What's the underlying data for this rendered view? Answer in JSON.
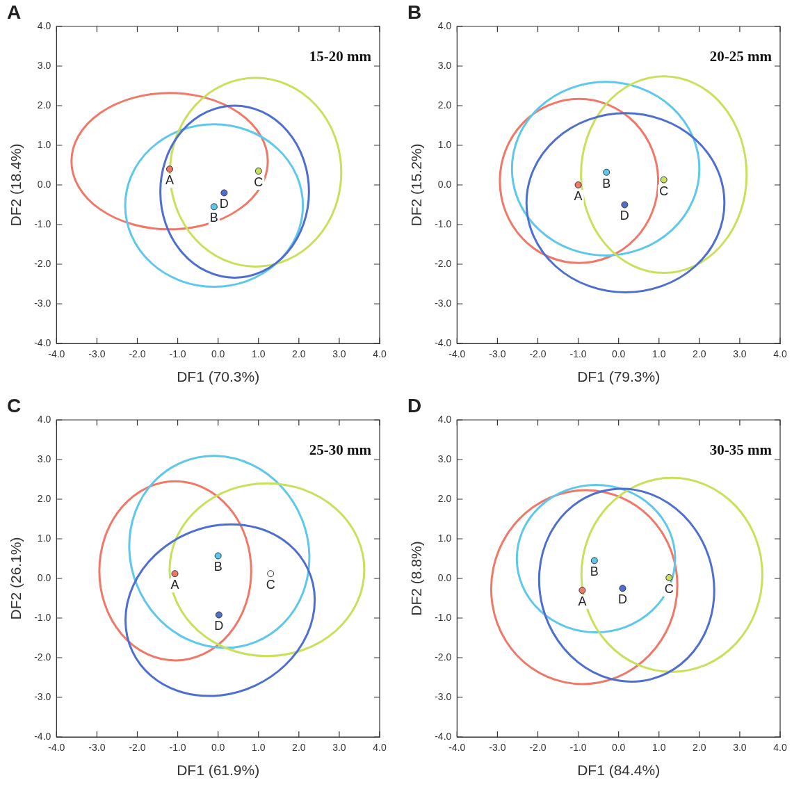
{
  "chart_data": [
    {
      "type": "scatter",
      "title": "A",
      "subtitle": "15-20 mm",
      "xlabel": "DF1 (70.3%)",
      "ylabel": "DF2 (18.4%)",
      "xlim": [
        -4,
        4
      ],
      "ylim": [
        -4,
        4
      ],
      "xticks": [
        {
          "value": -4,
          "label": "-4.0"
        },
        {
          "value": -3,
          "label": "-3.0"
        },
        {
          "value": -2,
          "label": "-2.0"
        },
        {
          "value": -1,
          "label": "-1.0"
        },
        {
          "value": 0,
          "label": "0.0"
        },
        {
          "value": 1,
          "label": "1.0"
        },
        {
          "value": 2,
          "label": "2.0"
        },
        {
          "value": 3,
          "label": "3.0"
        },
        {
          "value": 4,
          "label": "4.0"
        }
      ],
      "yticks": [
        {
          "value": -4,
          "label": "-4.0"
        },
        {
          "value": -3,
          "label": "-3.0"
        },
        {
          "value": -2,
          "label": "-2.0"
        },
        {
          "value": -1,
          "label": "-1.0"
        },
        {
          "value": 0,
          "label": "0.0"
        },
        {
          "value": 1,
          "label": "1.0"
        },
        {
          "value": 2,
          "label": "2.0"
        },
        {
          "value": 3,
          "label": "3.0"
        },
        {
          "value": 4,
          "label": "4.0"
        }
      ],
      "marker": "circle",
      "grid": false,
      "legend": false,
      "series": [
        {
          "name": "A",
          "color": "#f07868",
          "x": [
            -1.2
          ],
          "values": [
            0.4
          ]
        },
        {
          "name": "B",
          "color": "#5ec8ec",
          "x": [
            -0.1
          ],
          "values": [
            -0.55
          ]
        },
        {
          "name": "C",
          "color": "#c8e05a",
          "x": [
            1.0
          ],
          "values": [
            0.35
          ]
        },
        {
          "name": "D",
          "color": "#4f6fd0",
          "x": [
            0.15
          ],
          "values": [
            -0.2
          ]
        }
      ]
    },
    {
      "type": "scatter",
      "title": "B",
      "subtitle": "20-25 mm",
      "xlabel": "DF1 (79.3%)",
      "ylabel": "DF2 (15.2%)",
      "xlim": [
        -4,
        4
      ],
      "ylim": [
        -4,
        4
      ],
      "xticks": [
        {
          "value": -4,
          "label": "-4.0"
        },
        {
          "value": -3,
          "label": "-3.0"
        },
        {
          "value": -2,
          "label": "-2.0"
        },
        {
          "value": -1,
          "label": "-1.0"
        },
        {
          "value": 0,
          "label": "0.0"
        },
        {
          "value": 1,
          "label": "1.0"
        },
        {
          "value": 2,
          "label": "2.0"
        },
        {
          "value": 3,
          "label": "3.0"
        },
        {
          "value": 4,
          "label": "4.0"
        }
      ],
      "yticks": [
        {
          "value": -4,
          "label": "-4.0"
        },
        {
          "value": -3,
          "label": "-3.0"
        },
        {
          "value": -2,
          "label": "-2.0"
        },
        {
          "value": -1,
          "label": "-1.0"
        },
        {
          "value": 0,
          "label": "0.0"
        },
        {
          "value": 1,
          "label": "1.0"
        },
        {
          "value": 2,
          "label": "2.0"
        },
        {
          "value": 3,
          "label": "3.0"
        },
        {
          "value": 4,
          "label": "4.0"
        }
      ],
      "marker": "circle",
      "grid": false,
      "legend": false,
      "series": [
        {
          "name": "A",
          "color": "#f07868",
          "x": [
            -1.0
          ],
          "values": [
            0.0
          ]
        },
        {
          "name": "B",
          "color": "#5ec8ec",
          "x": [
            -0.3
          ],
          "values": [
            0.32
          ]
        },
        {
          "name": "C",
          "color": "#c8e05a",
          "x": [
            1.12
          ],
          "values": [
            0.13
          ]
        },
        {
          "name": "D",
          "color": "#4f6fd0",
          "x": [
            0.15
          ],
          "values": [
            -0.5
          ]
        }
      ]
    },
    {
      "type": "scatter",
      "title": "C",
      "subtitle": "25-30 mm",
      "xlabel": "DF1 (61.9%)",
      "ylabel": "DF2 (26.1%)",
      "xlim": [
        -4,
        4
      ],
      "ylim": [
        -4,
        4
      ],
      "xticks": [
        {
          "value": -4,
          "label": "-4.0"
        },
        {
          "value": -3,
          "label": "-3.0"
        },
        {
          "value": -2,
          "label": "-2.0"
        },
        {
          "value": -1,
          "label": "-1.0"
        },
        {
          "value": 0,
          "label": "0.0"
        },
        {
          "value": 1,
          "label": "1.0"
        },
        {
          "value": 2,
          "label": "2.0"
        },
        {
          "value": 3,
          "label": "3.0"
        },
        {
          "value": 4,
          "label": "4.0"
        }
      ],
      "yticks": [
        {
          "value": -4,
          "label": "-4.0"
        },
        {
          "value": -3,
          "label": "-3.0"
        },
        {
          "value": -2,
          "label": "-2.0"
        },
        {
          "value": -1,
          "label": "-1.0"
        },
        {
          "value": 0,
          "label": "0.0"
        },
        {
          "value": 1,
          "label": "1.0"
        },
        {
          "value": 2,
          "label": "2.0"
        },
        {
          "value": 3,
          "label": "3.0"
        },
        {
          "value": 4,
          "label": "4.0"
        }
      ],
      "marker": "circle",
      "grid": false,
      "legend": false,
      "series": [
        {
          "name": "A",
          "color": "#f07868",
          "x": [
            -1.07
          ],
          "values": [
            0.12
          ]
        },
        {
          "name": "B",
          "color": "#5ec8ec",
          "x": [
            0.0
          ],
          "values": [
            0.57
          ]
        },
        {
          "name": "C",
          "color": "#ffffff",
          "x": [
            1.3
          ],
          "values": [
            0.12
          ]
        },
        {
          "name": "D",
          "color": "#4f6fd0",
          "x": [
            0.02
          ],
          "values": [
            -0.92
          ]
        }
      ]
    },
    {
      "type": "scatter",
      "title": "D",
      "subtitle": "30-35 mm",
      "xlabel": "DF1 (84.4%)",
      "ylabel": "DF2 (8.8%)",
      "xlim": [
        -4,
        4
      ],
      "ylim": [
        -4,
        4
      ],
      "xticks": [
        {
          "value": -4,
          "label": "-4.0"
        },
        {
          "value": -3,
          "label": "-3.0"
        },
        {
          "value": -2,
          "label": "-2.0"
        },
        {
          "value": -1,
          "label": "-1.0"
        },
        {
          "value": 0,
          "label": "0.0"
        },
        {
          "value": 1,
          "label": "1.0"
        },
        {
          "value": 2,
          "label": "2.0"
        },
        {
          "value": 3,
          "label": "3.0"
        },
        {
          "value": 4,
          "label": "4.0"
        }
      ],
      "yticks": [
        {
          "value": -4,
          "label": "-4.0"
        },
        {
          "value": -3,
          "label": "-3.0"
        },
        {
          "value": -2,
          "label": "-2.0"
        },
        {
          "value": -1,
          "label": "-1.0"
        },
        {
          "value": 0,
          "label": "0.0"
        },
        {
          "value": 1,
          "label": "1.0"
        },
        {
          "value": 2,
          "label": "2.0"
        },
        {
          "value": 3,
          "label": "3.0"
        },
        {
          "value": 4,
          "label": "4.0"
        }
      ],
      "marker": "circle",
      "grid": false,
      "legend": false,
      "series": [
        {
          "name": "A",
          "color": "#f07868",
          "x": [
            -0.9
          ],
          "values": [
            -0.3
          ]
        },
        {
          "name": "B",
          "color": "#5ec8ec",
          "x": [
            -0.6
          ],
          "values": [
            0.45
          ]
        },
        {
          "name": "C",
          "color": "#c8e05a",
          "x": [
            1.25
          ],
          "values": [
            0.02
          ]
        },
        {
          "name": "D",
          "color": "#4f6fd0",
          "x": [
            0.1
          ],
          "values": [
            -0.25
          ]
        }
      ]
    }
  ]
}
